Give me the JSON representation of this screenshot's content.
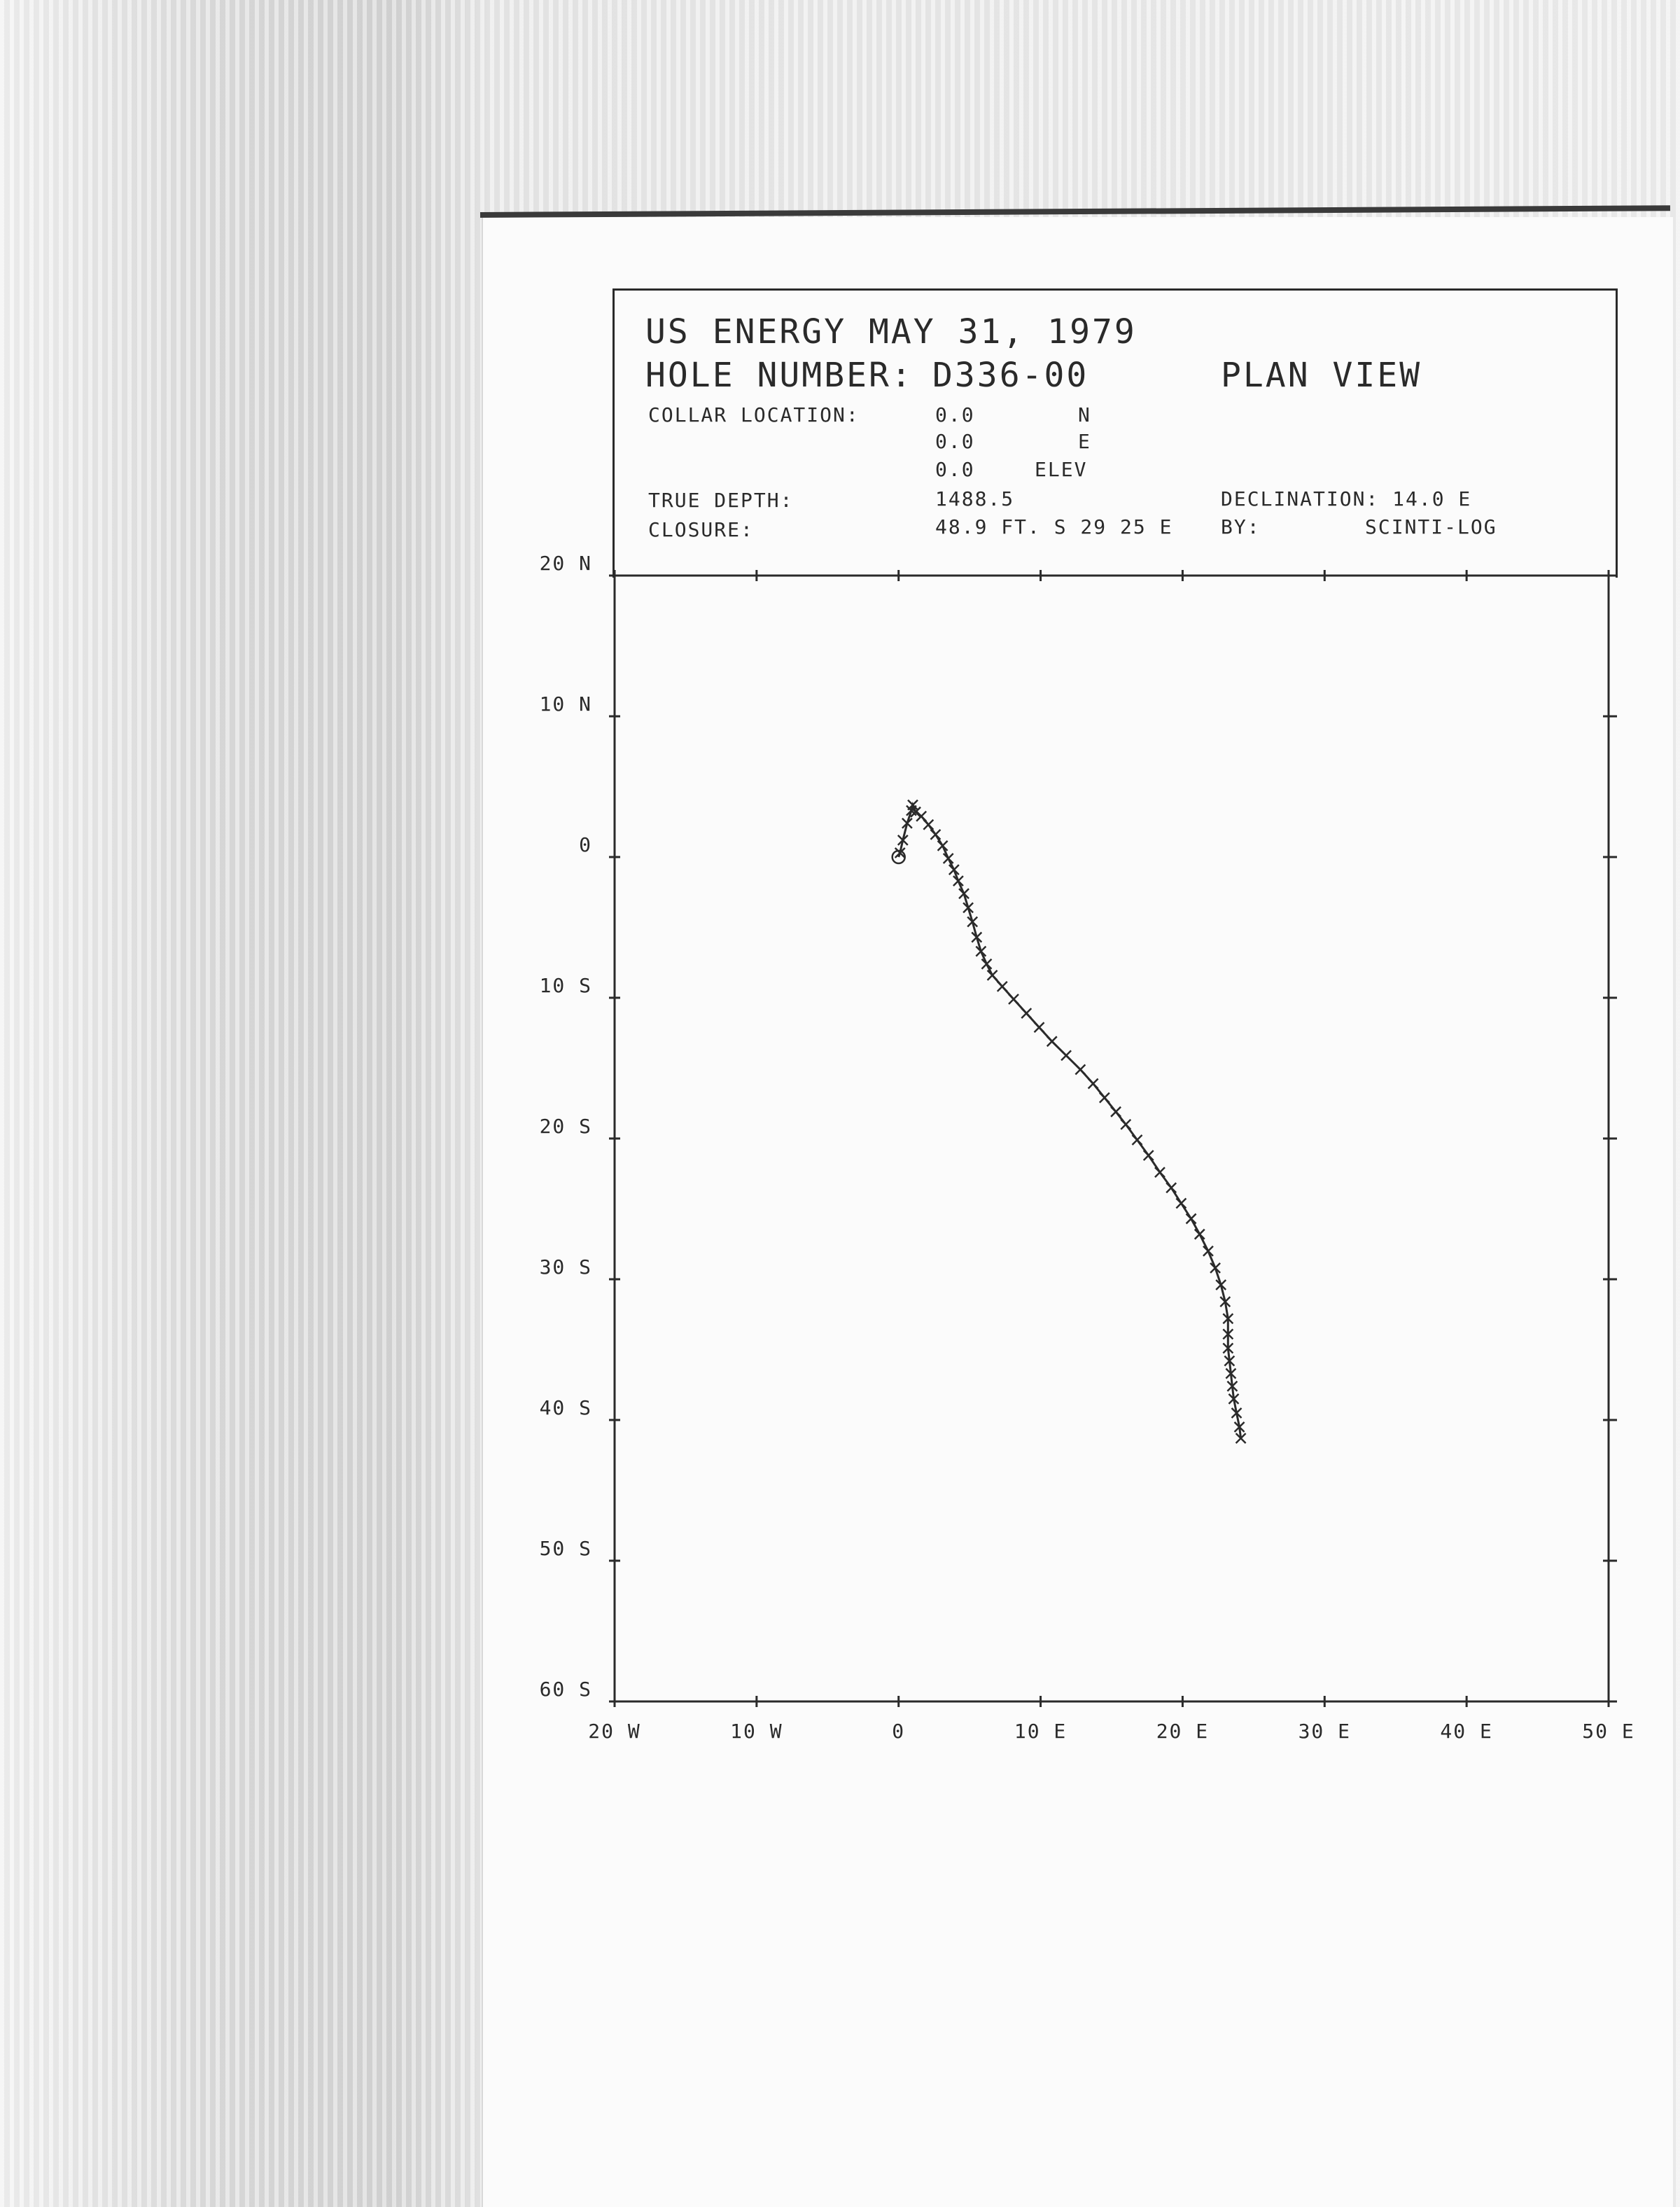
{
  "header": {
    "company_date": "US ENERGY MAY 31, 1979",
    "hole_label": "HOLE NUMBER:",
    "hole_number": "D336-00",
    "view": "PLAN VIEW",
    "collar_label": "COLLAR LOCATION:",
    "collar_n_value": "0.0",
    "collar_n_unit": "N",
    "collar_e_value": "0.0",
    "collar_e_unit": "E",
    "collar_elev_value": "0.0",
    "collar_elev_unit": "ELEV",
    "true_depth_label": "TRUE DEPTH:",
    "true_depth_value": "1488.5",
    "declination": "DECLINATION: 14.0 E",
    "closure_label": "CLOSURE:",
    "closure_value": "48.9 FT. S 29 25 E",
    "by_label": "BY:",
    "by_value": "SCINTI-LOG"
  },
  "chart_data": {
    "type": "scatter",
    "title": "PLAN VIEW",
    "xlabel": "",
    "ylabel": "",
    "xlim": [
      -20,
      50
    ],
    "ylim": [
      -60,
      20
    ],
    "grid": false,
    "x_tick_values": [
      -20,
      -10,
      0,
      10,
      20,
      30,
      40,
      50
    ],
    "x_tick_labels": [
      "20 W",
      "10 W",
      "0",
      "10 E",
      "20 E",
      "30 E",
      "40 E",
      "50 E"
    ],
    "y_tick_values": [
      20,
      10,
      0,
      -10,
      -20,
      -30,
      -40,
      -50,
      -60
    ],
    "y_tick_labels": [
      "20 N",
      "10 N",
      "0",
      "10 S",
      "20 S",
      "30 S",
      "40 S",
      "50 S",
      "60 S"
    ],
    "collar": {
      "x": 0,
      "y": 0,
      "marker": "circle"
    },
    "series": [
      {
        "marker": "x",
        "points": [
          [
            0.1,
            0.3
          ],
          [
            0.3,
            1.2
          ],
          [
            0.6,
            2.4
          ],
          [
            0.9,
            3.3
          ],
          [
            1.0,
            3.7
          ],
          [
            1.2,
            3.2
          ],
          [
            1.6,
            2.9
          ],
          [
            2.1,
            2.3
          ],
          [
            2.6,
            1.6
          ],
          [
            3.1,
            0.8
          ],
          [
            3.5,
            -0.1
          ],
          [
            3.9,
            -0.9
          ],
          [
            4.2,
            -1.7
          ],
          [
            4.6,
            -2.6
          ],
          [
            4.9,
            -3.6
          ],
          [
            5.2,
            -4.6
          ],
          [
            5.5,
            -5.7
          ],
          [
            5.8,
            -6.7
          ],
          [
            6.2,
            -7.6
          ],
          [
            6.6,
            -8.4
          ],
          [
            7.3,
            -9.2
          ],
          [
            8.1,
            -10.1
          ],
          [
            9.0,
            -11.1
          ],
          [
            9.9,
            -12.1
          ],
          [
            10.8,
            -13.1
          ],
          [
            11.8,
            -14.1
          ],
          [
            12.8,
            -15.1
          ],
          [
            13.7,
            -16.1
          ],
          [
            14.5,
            -17.1
          ],
          [
            15.3,
            -18.1
          ],
          [
            16.0,
            -19.0
          ],
          [
            16.8,
            -20.1
          ],
          [
            17.6,
            -21.2
          ],
          [
            18.4,
            -22.4
          ],
          [
            19.2,
            -23.5
          ],
          [
            19.9,
            -24.6
          ],
          [
            20.6,
            -25.7
          ],
          [
            21.2,
            -26.8
          ],
          [
            21.8,
            -28.0
          ],
          [
            22.3,
            -29.2
          ],
          [
            22.7,
            -30.4
          ],
          [
            23.0,
            -31.6
          ],
          [
            23.2,
            -32.8
          ],
          [
            23.2,
            -33.9
          ],
          [
            23.2,
            -34.9
          ],
          [
            23.3,
            -35.8
          ],
          [
            23.4,
            -36.7
          ],
          [
            23.5,
            -37.6
          ],
          [
            23.6,
            -38.5
          ],
          [
            23.8,
            -39.5
          ],
          [
            24.0,
            -40.5
          ],
          [
            24.1,
            -41.3
          ]
        ]
      }
    ]
  }
}
